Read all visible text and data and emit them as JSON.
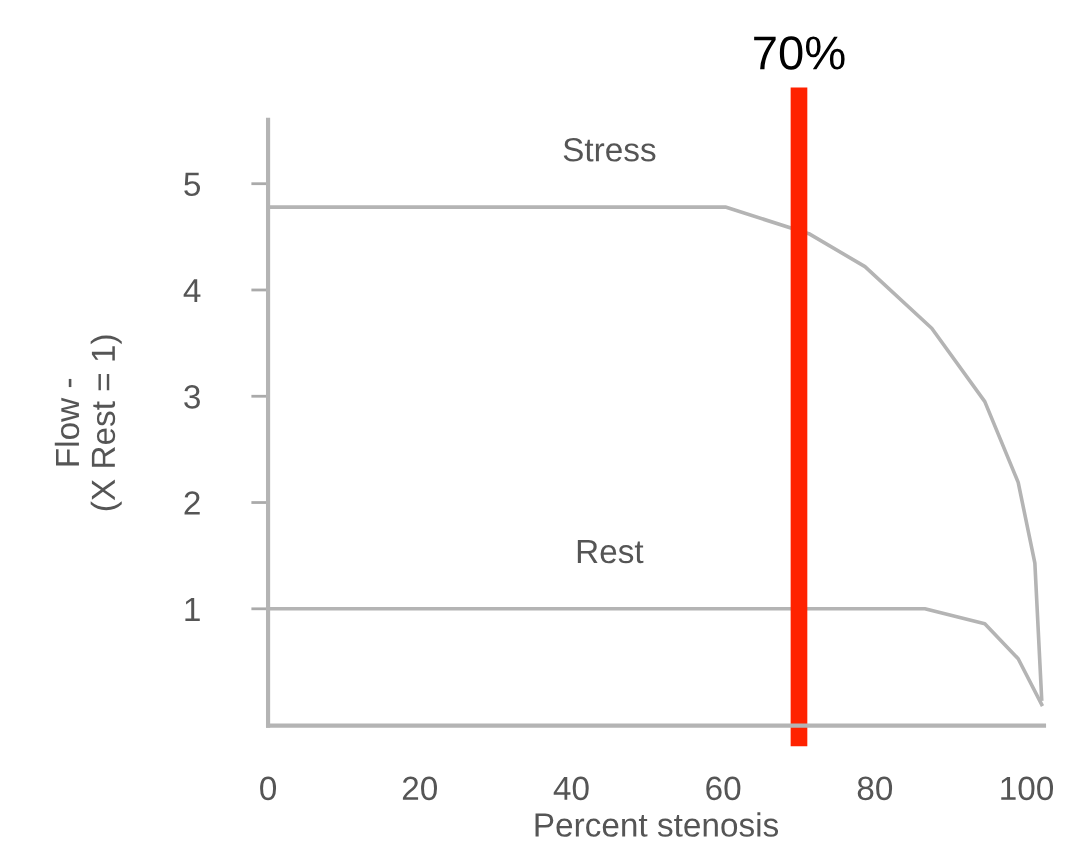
{
  "chart_data": {
    "type": "line",
    "xlabel": "Percent stenosis",
    "ylabel": "Flow -\n(X Rest = 1)",
    "xlim": [
      0,
      102.3
    ],
    "xticks": [
      0,
      20,
      40,
      60,
      80,
      100
    ],
    "ylim": [
      -0.1,
      5.6
    ],
    "yticks": [
      1,
      2,
      3,
      4,
      5
    ],
    "series": [
      {
        "name": "Stress",
        "color": "#b4b4b4",
        "x": [
          0,
          60.3,
          71.3,
          78.7,
          87.5,
          94.5,
          98.9,
          101.1,
          102
        ],
        "values": [
          4.78,
          4.78,
          4.53,
          4.22,
          3.64,
          2.95,
          2.19,
          1.43,
          0.15
        ]
      },
      {
        "name": "Rest",
        "color": "#b4b4b4",
        "x": [
          0,
          86.6,
          94.5,
          98.9,
          102
        ],
        "values": [
          1,
          1,
          0.86,
          0.53,
          0.1
        ]
      }
    ],
    "ref_lines": [
      {
        "axis": "x",
        "value": 70,
        "label": "70%",
        "color": "#ff2200"
      }
    ],
    "grid": false,
    "legend": false,
    "marker": "none",
    "line_style": "solid"
  }
}
